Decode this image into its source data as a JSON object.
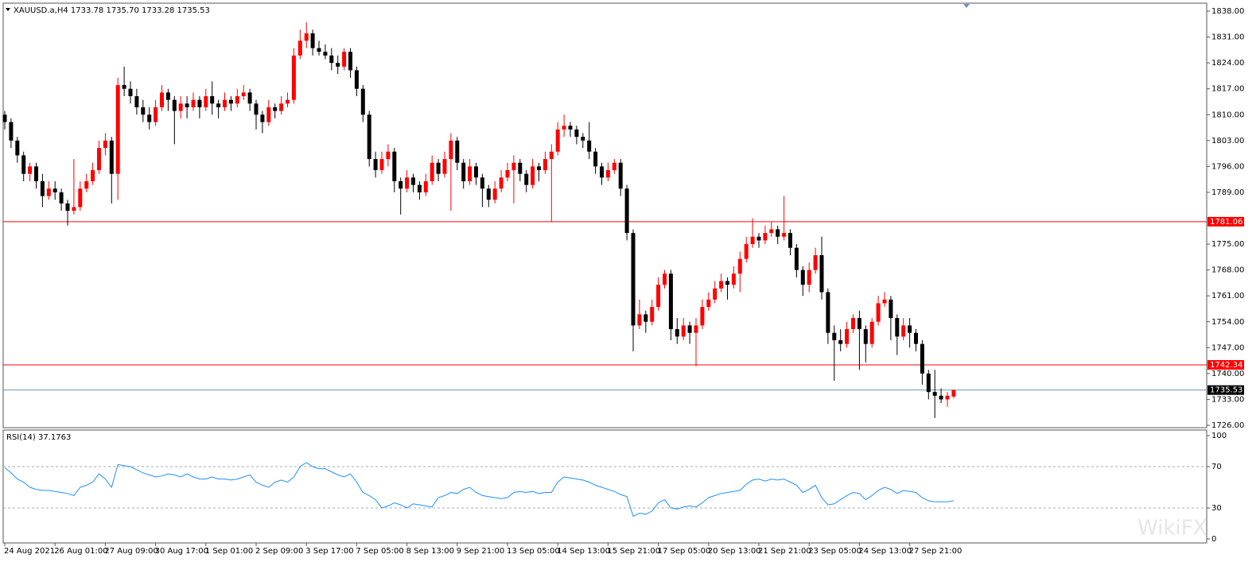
{
  "chart_data": [
    {
      "type": "candlestick",
      "title": "XAUUSD.a,H4  1733.78 1735.70 1733.28 1735.53",
      "up_color": "#ff0000",
      "down_color": "#000000",
      "ylim": [
        1726,
        1838
      ],
      "yticks": [
        {
          "value": 1838,
          "label": "1838.00"
        },
        {
          "value": 1831,
          "label": "1831.00"
        },
        {
          "value": 1824,
          "label": "1824.00"
        },
        {
          "value": 1817,
          "label": "1817.00"
        },
        {
          "value": 1810,
          "label": "1810.00"
        },
        {
          "value": 1803,
          "label": "1803.00"
        },
        {
          "value": 1796,
          "label": "1796.00"
        },
        {
          "value": 1789,
          "label": "1789.00"
        },
        {
          "value": 1775,
          "label": "1775.00"
        },
        {
          "value": 1768,
          "label": "1768.00"
        },
        {
          "value": 1761,
          "label": "1761.00"
        },
        {
          "value": 1754,
          "label": "1754.00"
        },
        {
          "value": 1747,
          "label": "1747.00"
        },
        {
          "value": 1740,
          "label": "1740.00"
        },
        {
          "value": 1733,
          "label": "1733.00"
        },
        {
          "value": 1726,
          "label": "1726.00"
        }
      ],
      "hlines": [
        {
          "value": 1781.06,
          "color": "#ff0000",
          "label_color": "#ff0000"
        },
        {
          "value": 1742.34,
          "color": "#ff0000",
          "label_color": "#ff0000"
        },
        {
          "value": 1735.53,
          "color": "#6f93b8",
          "label_color": "#000000"
        }
      ],
      "categories": [
        "24 Aug 2021",
        null,
        null,
        null,
        null,
        null,
        null,
        null,
        "26 Aug 01:00",
        null,
        null,
        null,
        null,
        null,
        null,
        null,
        "27 Aug 09:00",
        null,
        null,
        null,
        null,
        null,
        null,
        null,
        "30 Aug 17:00",
        null,
        null,
        null,
        null,
        null,
        null,
        null,
        "1 Sep 01:00",
        null,
        null,
        null,
        null,
        null,
        null,
        null,
        "2 Sep 09:00",
        null,
        null,
        null,
        null,
        null,
        null,
        null,
        "3 Sep 17:00",
        null,
        null,
        null,
        null,
        null,
        null,
        null,
        "7 Sep 05:00",
        null,
        null,
        null,
        null,
        null,
        null,
        null,
        "8 Sep 13:00",
        null,
        null,
        null,
        null,
        null,
        null,
        null,
        "9 Sep 21:00",
        null,
        null,
        null,
        null,
        null,
        null,
        null,
        "13 Sep 05:00",
        null,
        null,
        null,
        null,
        null,
        null,
        null,
        "14 Sep 13:00",
        null,
        null,
        null,
        null,
        null,
        null,
        null,
        "15 Sep 21:00",
        null,
        null,
        null,
        null,
        null,
        null,
        null,
        "17 Sep 05:00",
        null,
        null,
        null,
        null,
        null,
        null,
        null,
        "20 Sep 13:00",
        null,
        null,
        null,
        null,
        null,
        null,
        null,
        "21 Sep 21:00",
        null,
        null,
        null,
        null,
        null,
        null,
        null,
        "23 Sep 05:00",
        null,
        null,
        null,
        null,
        null,
        null,
        null,
        "24 Sep 13:00",
        null,
        null,
        null,
        null,
        null,
        null,
        null,
        "27 Sep 21:00",
        null,
        null,
        null,
        null,
        null,
        null,
        null
      ],
      "candles": [
        [
          1810,
          1811,
          1806,
          1808
        ],
        [
          1808,
          1809,
          1801,
          1803
        ],
        [
          1803,
          1804,
          1797,
          1799
        ],
        [
          1799,
          1800,
          1792,
          1794
        ],
        [
          1794,
          1797,
          1792,
          1796
        ],
        [
          1796,
          1797,
          1790,
          1792
        ],
        [
          1792,
          1794,
          1785,
          1788
        ],
        [
          1788,
          1792,
          1787,
          1790
        ],
        [
          1790,
          1792,
          1787,
          1789
        ],
        [
          1789,
          1790,
          1784,
          1786
        ],
        [
          1786,
          1787,
          1780,
          1784
        ],
        [
          1784,
          1798,
          1783,
          1785
        ],
        [
          1785,
          1792,
          1784,
          1790
        ],
        [
          1790,
          1794,
          1789,
          1792
        ],
        [
          1792,
          1797,
          1791,
          1795
        ],
        [
          1795,
          1803,
          1794,
          1801
        ],
        [
          1801,
          1805,
          1799,
          1803
        ],
        [
          1803,
          1804,
          1786,
          1794
        ],
        [
          1794,
          1820,
          1787,
          1818
        ],
        [
          1818,
          1823,
          1815,
          1817
        ],
        [
          1817,
          1819,
          1813,
          1815
        ],
        [
          1815,
          1817,
          1810,
          1812
        ],
        [
          1812,
          1814,
          1808,
          1810
        ],
        [
          1810,
          1812,
          1806,
          1808
        ],
        [
          1808,
          1814,
          1807,
          1812
        ],
        [
          1812,
          1818,
          1811,
          1816
        ],
        [
          1816,
          1817,
          1811,
          1814
        ],
        [
          1814,
          1815,
          1802,
          1811
        ],
        [
          1811,
          1815,
          1809,
          1813
        ],
        [
          1813,
          1815,
          1809,
          1812
        ],
        [
          1812,
          1816,
          1811,
          1814
        ],
        [
          1814,
          1815,
          1809,
          1812
        ],
        [
          1812,
          1817,
          1811,
          1815
        ],
        [
          1815,
          1819,
          1810,
          1813
        ],
        [
          1813,
          1814,
          1809,
          1812
        ],
        [
          1812,
          1816,
          1811,
          1814
        ],
        [
          1814,
          1815,
          1811,
          1813
        ],
        [
          1813,
          1817,
          1812,
          1815
        ],
        [
          1815,
          1818,
          1814,
          1816
        ],
        [
          1816,
          1817,
          1811,
          1813
        ],
        [
          1813,
          1814,
          1806,
          1810
        ],
        [
          1810,
          1811,
          1805,
          1808
        ],
        [
          1808,
          1814,
          1807,
          1812
        ],
        [
          1812,
          1813,
          1809,
          1811
        ],
        [
          1811,
          1815,
          1810,
          1813
        ],
        [
          1813,
          1816,
          1812,
          1814
        ],
        [
          1814,
          1828,
          1813,
          1826
        ],
        [
          1826,
          1833,
          1825,
          1830
        ],
        [
          1830,
          1835,
          1828,
          1832
        ],
        [
          1832,
          1833,
          1826,
          1828
        ],
        [
          1828,
          1830,
          1826,
          1827
        ],
        [
          1827,
          1829,
          1825,
          1826
        ],
        [
          1826,
          1828,
          1822,
          1824
        ],
        [
          1824,
          1826,
          1821,
          1823
        ],
        [
          1823,
          1828,
          1822,
          1827
        ],
        [
          1827,
          1828,
          1820,
          1822
        ],
        [
          1822,
          1823,
          1815,
          1817
        ],
        [
          1817,
          1818,
          1808,
          1810
        ],
        [
          1810,
          1811,
          1796,
          1798
        ],
        [
          1798,
          1800,
          1793,
          1795
        ],
        [
          1795,
          1800,
          1794,
          1798
        ],
        [
          1798,
          1802,
          1796,
          1800
        ],
        [
          1800,
          1801,
          1789,
          1792
        ],
        [
          1792,
          1793,
          1783,
          1790
        ],
        [
          1790,
          1795,
          1789,
          1793
        ],
        [
          1793,
          1794,
          1789,
          1791
        ],
        [
          1791,
          1792,
          1787,
          1789
        ],
        [
          1789,
          1794,
          1788,
          1792
        ],
        [
          1792,
          1799,
          1791,
          1797
        ],
        [
          1797,
          1798,
          1792,
          1794
        ],
        [
          1794,
          1800,
          1793,
          1798
        ],
        [
          1798,
          1805,
          1784,
          1803
        ],
        [
          1803,
          1804,
          1795,
          1797
        ],
        [
          1797,
          1798,
          1790,
          1792
        ],
        [
          1792,
          1798,
          1791,
          1796
        ],
        [
          1796,
          1797,
          1791,
          1793
        ],
        [
          1793,
          1794,
          1785,
          1790
        ],
        [
          1790,
          1791,
          1785,
          1787
        ],
        [
          1787,
          1792,
          1786,
          1790
        ],
        [
          1790,
          1795,
          1789,
          1793
        ],
        [
          1793,
          1797,
          1792,
          1795
        ],
        [
          1795,
          1799,
          1786,
          1797
        ],
        [
          1797,
          1798,
          1792,
          1794
        ],
        [
          1794,
          1795,
          1789,
          1791
        ],
        [
          1791,
          1798,
          1790,
          1796
        ],
        [
          1796,
          1797,
          1792,
          1795
        ],
        [
          1795,
          1800,
          1794,
          1798
        ],
        [
          1798,
          1802,
          1781,
          1800
        ],
        [
          1800,
          1808,
          1799,
          1806
        ],
        [
          1806,
          1810,
          1804,
          1807
        ],
        [
          1807,
          1808,
          1804,
          1806
        ],
        [
          1806,
          1807,
          1802,
          1804
        ],
        [
          1804,
          1805,
          1801,
          1803
        ],
        [
          1803,
          1808,
          1798,
          1800
        ],
        [
          1800,
          1801,
          1794,
          1796
        ],
        [
          1796,
          1797,
          1791,
          1793
        ],
        [
          1793,
          1797,
          1792,
          1795
        ],
        [
          1795,
          1798,
          1794,
          1797
        ],
        [
          1797,
          1798,
          1788,
          1790
        ],
        [
          1790,
          1791,
          1776,
          1778
        ],
        [
          1778,
          1779,
          1746,
          1753
        ],
        [
          1753,
          1760,
          1752,
          1756
        ],
        [
          1756,
          1757,
          1751,
          1754
        ],
        [
          1754,
          1760,
          1753,
          1758
        ],
        [
          1758,
          1766,
          1757,
          1764
        ],
        [
          1764,
          1768,
          1763,
          1767
        ],
        [
          1767,
          1768,
          1749,
          1752
        ],
        [
          1752,
          1755,
          1748,
          1750
        ],
        [
          1750,
          1755,
          1749,
          1753
        ],
        [
          1753,
          1754,
          1748,
          1751
        ],
        [
          1751,
          1755,
          1742,
          1753
        ],
        [
          1753,
          1760,
          1752,
          1758
        ],
        [
          1758,
          1762,
          1757,
          1760
        ],
        [
          1760,
          1765,
          1759,
          1763
        ],
        [
          1763,
          1767,
          1762,
          1765
        ],
        [
          1765,
          1766,
          1760,
          1764
        ],
        [
          1764,
          1769,
          1763,
          1767
        ],
        [
          1767,
          1773,
          1762,
          1771
        ],
        [
          1771,
          1777,
          1770,
          1775
        ],
        [
          1775,
          1782,
          1774,
          1777
        ],
        [
          1777,
          1778,
          1774,
          1776
        ],
        [
          1776,
          1780,
          1775,
          1778
        ],
        [
          1778,
          1781,
          1777,
          1779
        ],
        [
          1779,
          1780,
          1775,
          1777
        ],
        [
          1777,
          1788,
          1776,
          1778
        ],
        [
          1778,
          1779,
          1772,
          1774
        ],
        [
          1774,
          1775,
          1766,
          1768
        ],
        [
          1768,
          1769,
          1761,
          1764
        ],
        [
          1764,
          1770,
          1762,
          1768
        ],
        [
          1768,
          1774,
          1767,
          1772
        ],
        [
          1772,
          1777,
          1760,
          1762
        ],
        [
          1762,
          1763,
          1748,
          1751
        ],
        [
          1751,
          1753,
          1738,
          1749
        ],
        [
          1749,
          1752,
          1746,
          1748
        ],
        [
          1748,
          1754,
          1747,
          1752
        ],
        [
          1752,
          1756,
          1751,
          1755
        ],
        [
          1755,
          1757,
          1741,
          1752
        ],
        [
          1752,
          1753,
          1743,
          1748
        ],
        [
          1748,
          1755,
          1747,
          1754
        ],
        [
          1754,
          1761,
          1753,
          1759
        ],
        [
          1759,
          1762,
          1758,
          1760
        ],
        [
          1760,
          1761,
          1749,
          1755
        ],
        [
          1755,
          1756,
          1745,
          1750
        ],
        [
          1750,
          1755,
          1749,
          1753
        ],
        [
          1753,
          1755,
          1747,
          1751
        ],
        [
          1751,
          1752,
          1746,
          1748
        ],
        [
          1748,
          1749,
          1737,
          1740
        ],
        [
          1740,
          1741,
          1733,
          1735
        ],
        [
          1735,
          1741,
          1728,
          1734
        ],
        [
          1734,
          1736,
          1732,
          1733
        ],
        [
          1733,
          1735,
          1731,
          1734
        ],
        [
          1733.78,
          1735.7,
          1733.28,
          1735.53
        ]
      ],
      "watermark": "WikiFX"
    },
    {
      "type": "line",
      "title": "RSI(14) 37.1763",
      "color": "#1e90ff",
      "ylim": [
        0,
        100
      ],
      "yticks": [
        100,
        70,
        30,
        0
      ],
      "levels": [
        70,
        30
      ],
      "values": [
        69,
        64,
        58,
        55,
        50,
        48,
        47,
        47,
        46,
        45,
        44,
        42,
        50,
        52,
        55,
        63,
        58,
        50,
        72,
        71,
        70,
        67,
        64,
        62,
        60,
        61,
        63,
        62,
        60,
        63,
        60,
        58,
        58,
        60,
        58,
        58,
        57,
        58,
        60,
        62,
        55,
        52,
        50,
        55,
        57,
        55,
        60,
        70,
        74,
        70,
        68,
        68,
        65,
        62,
        60,
        63,
        55,
        45,
        42,
        38,
        30,
        32,
        35,
        33,
        30,
        34,
        33,
        32,
        31,
        40,
        42,
        45,
        44,
        48,
        50,
        45,
        42,
        41,
        40,
        39,
        40,
        45,
        46,
        45,
        46,
        44,
        45,
        45,
        55,
        60,
        59,
        58,
        57,
        55,
        52,
        50,
        48,
        46,
        43,
        41,
        22,
        25,
        24,
        27,
        35,
        38,
        30,
        29,
        31,
        32,
        31,
        35,
        40,
        42,
        44,
        45,
        46,
        47,
        53,
        57,
        58,
        56,
        58,
        57,
        58,
        55,
        52,
        45,
        48,
        52,
        40,
        33,
        34,
        38,
        42,
        45,
        44,
        38,
        42,
        47,
        50,
        48,
        44,
        47,
        46,
        45,
        40,
        37,
        36,
        36,
        36,
        37.1763
      ]
    }
  ]
}
